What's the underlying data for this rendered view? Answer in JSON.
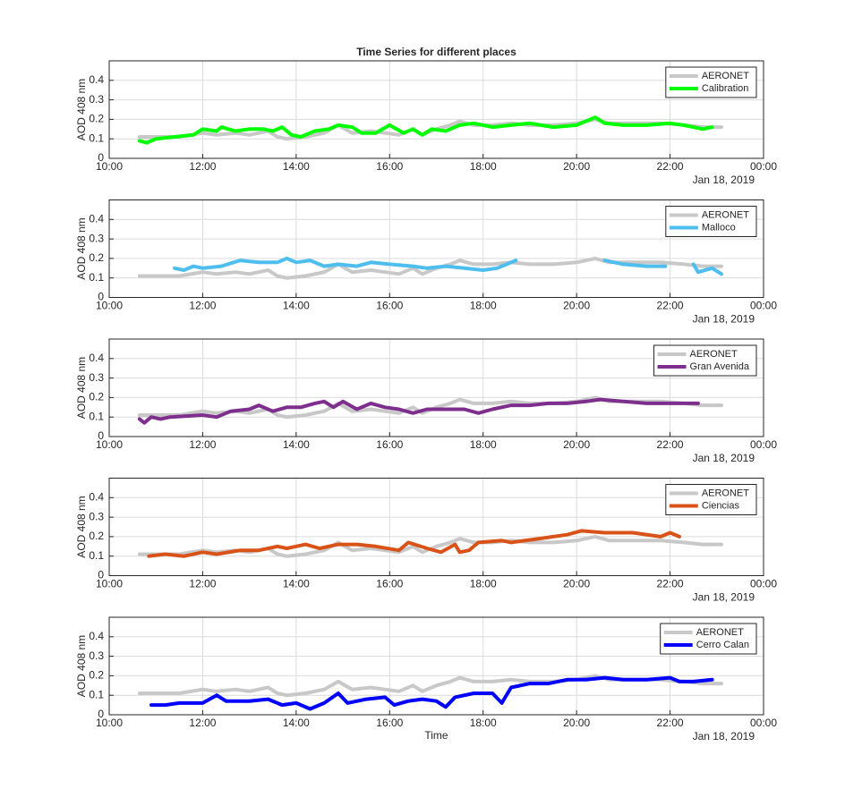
{
  "chart_data": [
    {
      "type": "line",
      "title": "Time Series for different places",
      "ylabel": "AOD 408 nm",
      "date_label": "Jan 18, 2019",
      "xlim": [
        10,
        24
      ],
      "ylim": [
        0,
        0.5
      ],
      "grid": true,
      "legend": "northeast",
      "xticks": [
        {
          "value": 10,
          "label": "10:00"
        },
        {
          "value": 12,
          "label": "12:00"
        },
        {
          "value": 14,
          "label": "14:00"
        },
        {
          "value": 16,
          "label": "16:00"
        },
        {
          "value": 18,
          "label": "18:00"
        },
        {
          "value": 20,
          "label": "20:00"
        },
        {
          "value": 22,
          "label": "22:00"
        },
        {
          "value": 24,
          "label": "00:00"
        }
      ],
      "yticks": [
        0,
        0.1,
        0.2,
        0.3,
        0.4
      ],
      "series": [
        {
          "name": "AERONET",
          "color": "#c8c8c8",
          "x": [
            10.65,
            11.0,
            11.5,
            12.0,
            12.3,
            12.7,
            13.0,
            13.4,
            13.6,
            13.8,
            14.2,
            14.6,
            14.9,
            15.2,
            15.6,
            15.9,
            16.2,
            16.5,
            16.7,
            17.0,
            17.3,
            17.5,
            17.8,
            18.2,
            18.6,
            19.0,
            19.5,
            20.0,
            20.4,
            20.7,
            21.2,
            21.8,
            22.3,
            22.7,
            23.1
          ],
          "values": [
            0.11,
            0.11,
            0.11,
            0.13,
            0.12,
            0.13,
            0.12,
            0.14,
            0.11,
            0.1,
            0.11,
            0.13,
            0.17,
            0.13,
            0.14,
            0.13,
            0.12,
            0.15,
            0.12,
            0.15,
            0.17,
            0.19,
            0.17,
            0.17,
            0.18,
            0.17,
            0.17,
            0.18,
            0.2,
            0.18,
            0.18,
            0.18,
            0.17,
            0.16,
            0.16
          ]
        },
        {
          "name": "Calibration",
          "color": "#00ff00",
          "x": [
            10.65,
            10.8,
            11.0,
            11.4,
            11.8,
            12.0,
            12.3,
            12.4,
            12.7,
            13.0,
            13.3,
            13.5,
            13.7,
            13.9,
            14.1,
            14.4,
            14.7,
            14.9,
            15.2,
            15.4,
            15.7,
            16.0,
            16.3,
            16.5,
            16.7,
            16.9,
            17.2,
            17.5,
            17.8,
            18.2,
            18.6,
            19.0,
            19.5,
            20.0,
            20.4,
            20.6,
            21.0,
            21.5,
            22.0,
            22.3,
            22.7,
            22.9
          ],
          "values": [
            0.09,
            0.08,
            0.1,
            0.11,
            0.12,
            0.15,
            0.14,
            0.16,
            0.14,
            0.15,
            0.15,
            0.14,
            0.16,
            0.12,
            0.11,
            0.14,
            0.15,
            0.17,
            0.16,
            0.13,
            0.13,
            0.17,
            0.13,
            0.15,
            0.12,
            0.15,
            0.14,
            0.17,
            0.18,
            0.16,
            0.17,
            0.18,
            0.16,
            0.17,
            0.21,
            0.18,
            0.17,
            0.17,
            0.18,
            0.17,
            0.15,
            0.16
          ]
        }
      ]
    },
    {
      "type": "line",
      "ylabel": "AOD 408 nm",
      "date_label": "Jan 18, 2019",
      "xlim": [
        10,
        24
      ],
      "ylim": [
        0,
        0.5
      ],
      "grid": true,
      "legend": "northeast",
      "xticks": [
        {
          "value": 10,
          "label": "10:00"
        },
        {
          "value": 12,
          "label": "12:00"
        },
        {
          "value": 14,
          "label": "14:00"
        },
        {
          "value": 16,
          "label": "16:00"
        },
        {
          "value": 18,
          "label": "18:00"
        },
        {
          "value": 20,
          "label": "20:00"
        },
        {
          "value": 22,
          "label": "22:00"
        },
        {
          "value": 24,
          "label": "00:00"
        }
      ],
      "yticks": [
        0,
        0.1,
        0.2,
        0.3,
        0.4
      ],
      "series": [
        {
          "name": "AERONET",
          "color": "#c8c8c8",
          "x": [
            10.65,
            11.0,
            11.5,
            12.0,
            12.3,
            12.7,
            13.0,
            13.4,
            13.6,
            13.8,
            14.2,
            14.6,
            14.9,
            15.2,
            15.6,
            15.9,
            16.2,
            16.5,
            16.7,
            17.0,
            17.3,
            17.5,
            17.8,
            18.2,
            18.6,
            19.0,
            19.5,
            20.0,
            20.4,
            20.7,
            21.2,
            21.8,
            22.3,
            22.7,
            23.1
          ],
          "values": [
            0.11,
            0.11,
            0.11,
            0.13,
            0.12,
            0.13,
            0.12,
            0.14,
            0.11,
            0.1,
            0.11,
            0.13,
            0.17,
            0.13,
            0.14,
            0.13,
            0.12,
            0.15,
            0.12,
            0.15,
            0.17,
            0.19,
            0.17,
            0.17,
            0.18,
            0.17,
            0.17,
            0.18,
            0.2,
            0.18,
            0.18,
            0.18,
            0.17,
            0.16,
            0.16
          ]
        },
        {
          "name": "Malloco",
          "color": "#4dbeee",
          "x": [
            11.4,
            11.6,
            11.8,
            12.0,
            12.4,
            12.8,
            13.2,
            13.6,
            13.8,
            14.0,
            14.3,
            14.6,
            14.9,
            15.3,
            15.6,
            16.0,
            16.5,
            16.8,
            17.2,
            17.6,
            18.0,
            18.3,
            18.7,
            19.6,
            20.6,
            21.0,
            21.5,
            21.9,
            22.2,
            22.5,
            22.6,
            22.9,
            23.1
          ],
          "values": [
            0.15,
            0.14,
            0.16,
            0.15,
            0.16,
            0.19,
            0.18,
            0.18,
            0.2,
            0.18,
            0.19,
            0.16,
            0.17,
            0.16,
            0.18,
            0.17,
            0.16,
            0.15,
            0.16,
            0.15,
            0.14,
            0.15,
            0.19,
            null,
            0.19,
            0.17,
            0.16,
            0.16,
            null,
            0.17,
            0.13,
            0.15,
            0.12
          ]
        }
      ]
    },
    {
      "type": "line",
      "ylabel": "AOD 408 nm",
      "date_label": "Jan 18, 2019",
      "xlim": [
        10,
        24
      ],
      "ylim": [
        0,
        0.5
      ],
      "grid": true,
      "legend": "northeast",
      "xticks": [
        {
          "value": 10,
          "label": "10:00"
        },
        {
          "value": 12,
          "label": "12:00"
        },
        {
          "value": 14,
          "label": "14:00"
        },
        {
          "value": 16,
          "label": "16:00"
        },
        {
          "value": 18,
          "label": "18:00"
        },
        {
          "value": 20,
          "label": "20:00"
        },
        {
          "value": 22,
          "label": "22:00"
        },
        {
          "value": 24,
          "label": "00:00"
        }
      ],
      "yticks": [
        0,
        0.1,
        0.2,
        0.3,
        0.4
      ],
      "series": [
        {
          "name": "AERONET",
          "color": "#c8c8c8",
          "x": [
            10.65,
            11.0,
            11.5,
            12.0,
            12.3,
            12.7,
            13.0,
            13.4,
            13.6,
            13.8,
            14.2,
            14.6,
            14.9,
            15.2,
            15.6,
            15.9,
            16.2,
            16.5,
            16.7,
            17.0,
            17.3,
            17.5,
            17.8,
            18.2,
            18.6,
            19.0,
            19.5,
            20.0,
            20.4,
            20.7,
            21.2,
            21.8,
            22.3,
            22.7,
            23.1
          ],
          "values": [
            0.11,
            0.11,
            0.11,
            0.13,
            0.12,
            0.13,
            0.12,
            0.14,
            0.11,
            0.1,
            0.11,
            0.13,
            0.17,
            0.13,
            0.14,
            0.13,
            0.12,
            0.15,
            0.12,
            0.15,
            0.17,
            0.19,
            0.17,
            0.17,
            0.18,
            0.17,
            0.17,
            0.18,
            0.2,
            0.18,
            0.18,
            0.18,
            0.17,
            0.16,
            0.16
          ]
        },
        {
          "name": "Gran Avenida",
          "color": "#7e2f8e",
          "x": [
            10.65,
            10.75,
            10.9,
            11.1,
            11.3,
            12.0,
            12.3,
            12.6,
            13.0,
            13.2,
            13.5,
            13.8,
            14.1,
            14.4,
            14.6,
            14.8,
            15.0,
            15.3,
            15.6,
            15.9,
            16.2,
            16.5,
            16.8,
            17.2,
            17.6,
            17.9,
            18.2,
            18.6,
            19.0,
            19.4,
            19.8,
            20.2,
            20.5,
            21.0,
            21.5,
            22.0,
            22.6
          ],
          "values": [
            0.09,
            0.07,
            0.1,
            0.09,
            0.1,
            0.11,
            0.1,
            0.13,
            0.14,
            0.16,
            0.13,
            0.15,
            0.15,
            0.17,
            0.18,
            0.15,
            0.18,
            0.14,
            0.17,
            0.15,
            0.14,
            0.12,
            0.14,
            0.14,
            0.14,
            0.12,
            0.14,
            0.16,
            0.16,
            0.17,
            0.17,
            0.18,
            0.19,
            0.18,
            0.17,
            0.17,
            0.17
          ]
        }
      ]
    },
    {
      "type": "line",
      "ylabel": "AOD 408 nm",
      "date_label": "Jan 18, 2019",
      "xlim": [
        10,
        24
      ],
      "ylim": [
        0,
        0.5
      ],
      "grid": true,
      "legend": "northeast",
      "xticks": [
        {
          "value": 10,
          "label": "10:00"
        },
        {
          "value": 12,
          "label": "12:00"
        },
        {
          "value": 14,
          "label": "14:00"
        },
        {
          "value": 16,
          "label": "16:00"
        },
        {
          "value": 18,
          "label": "18:00"
        },
        {
          "value": 20,
          "label": "20:00"
        },
        {
          "value": 22,
          "label": "22:00"
        },
        {
          "value": 24,
          "label": "00:00"
        }
      ],
      "yticks": [
        0,
        0.1,
        0.2,
        0.3,
        0.4
      ],
      "series": [
        {
          "name": "AERONET",
          "color": "#c8c8c8",
          "x": [
            10.65,
            11.0,
            11.5,
            12.0,
            12.3,
            12.7,
            13.0,
            13.4,
            13.6,
            13.8,
            14.2,
            14.6,
            14.9,
            15.2,
            15.6,
            15.9,
            16.2,
            16.5,
            16.7,
            17.0,
            17.3,
            17.5,
            17.8,
            18.2,
            18.6,
            19.0,
            19.5,
            20.0,
            20.4,
            20.7,
            21.2,
            21.8,
            22.3,
            22.7,
            23.1
          ],
          "values": [
            0.11,
            0.11,
            0.11,
            0.13,
            0.12,
            0.13,
            0.12,
            0.14,
            0.11,
            0.1,
            0.11,
            0.13,
            0.17,
            0.13,
            0.14,
            0.13,
            0.12,
            0.15,
            0.12,
            0.15,
            0.17,
            0.19,
            0.17,
            0.17,
            0.18,
            0.17,
            0.17,
            0.18,
            0.2,
            0.18,
            0.18,
            0.18,
            0.17,
            0.16,
            0.16
          ]
        },
        {
          "name": "Ciencias",
          "color": "#d95319",
          "x": [
            10.85,
            11.2,
            11.6,
            12.0,
            12.3,
            12.8,
            13.2,
            13.6,
            13.8,
            14.0,
            14.2,
            14.5,
            14.9,
            15.3,
            15.7,
            16.2,
            16.4,
            16.8,
            17.1,
            17.4,
            17.5,
            17.7,
            17.9,
            18.4,
            18.6,
            19.2,
            19.8,
            20.1,
            20.6,
            21.2,
            21.8,
            22.0,
            22.2
          ],
          "values": [
            0.1,
            0.11,
            0.1,
            0.12,
            0.11,
            0.13,
            0.13,
            0.15,
            0.14,
            0.15,
            0.16,
            0.14,
            0.16,
            0.16,
            0.15,
            0.13,
            0.17,
            0.14,
            0.12,
            0.16,
            0.12,
            0.13,
            0.17,
            0.18,
            0.17,
            0.19,
            0.21,
            0.23,
            0.22,
            0.22,
            0.2,
            0.22,
            0.2
          ]
        }
      ]
    },
    {
      "type": "line",
      "ylabel": "AOD 408 nm",
      "xlabel": "Time",
      "date_label": "Jan 18, 2019",
      "xlim": [
        10,
        24
      ],
      "ylim": [
        0,
        0.5
      ],
      "grid": true,
      "legend": "northeast",
      "xticks": [
        {
          "value": 10,
          "label": "10:00"
        },
        {
          "value": 12,
          "label": "12:00"
        },
        {
          "value": 14,
          "label": "14:00"
        },
        {
          "value": 16,
          "label": "16:00"
        },
        {
          "value": 18,
          "label": "18:00"
        },
        {
          "value": 20,
          "label": "20:00"
        },
        {
          "value": 22,
          "label": "22:00"
        },
        {
          "value": 24,
          "label": "00:00"
        }
      ],
      "yticks": [
        0,
        0.1,
        0.2,
        0.3,
        0.4
      ],
      "series": [
        {
          "name": "AERONET",
          "color": "#c8c8c8",
          "x": [
            10.65,
            11.0,
            11.5,
            12.0,
            12.3,
            12.7,
            13.0,
            13.4,
            13.6,
            13.8,
            14.2,
            14.6,
            14.9,
            15.2,
            15.6,
            15.9,
            16.2,
            16.5,
            16.7,
            17.0,
            17.3,
            17.5,
            17.8,
            18.2,
            18.6,
            19.0,
            19.5,
            20.0,
            20.4,
            20.7,
            21.2,
            21.8,
            22.3,
            22.7,
            23.1
          ],
          "values": [
            0.11,
            0.11,
            0.11,
            0.13,
            0.12,
            0.13,
            0.12,
            0.14,
            0.11,
            0.1,
            0.11,
            0.13,
            0.17,
            0.13,
            0.14,
            0.13,
            0.12,
            0.15,
            0.12,
            0.15,
            0.17,
            0.19,
            0.17,
            0.17,
            0.18,
            0.17,
            0.17,
            0.18,
            0.2,
            0.18,
            0.18,
            0.18,
            0.17,
            0.16,
            0.16
          ]
        },
        {
          "name": "Cerro Calan",
          "color": "#0000ff",
          "x": [
            10.9,
            11.2,
            11.5,
            12.0,
            12.3,
            12.5,
            13.0,
            13.4,
            13.7,
            14.0,
            14.3,
            14.6,
            14.9,
            15.1,
            15.5,
            15.9,
            16.1,
            16.4,
            16.7,
            17.0,
            17.2,
            17.4,
            17.8,
            18.2,
            18.4,
            18.6,
            19.0,
            19.4,
            19.8,
            20.2,
            20.6,
            21.0,
            21.5,
            22.0,
            22.2,
            22.5,
            22.9
          ],
          "values": [
            0.05,
            0.05,
            0.06,
            0.06,
            0.1,
            0.07,
            0.07,
            0.08,
            0.05,
            0.06,
            0.03,
            0.06,
            0.11,
            0.06,
            0.08,
            0.09,
            0.05,
            0.07,
            0.08,
            0.07,
            0.04,
            0.09,
            0.11,
            0.11,
            0.06,
            0.14,
            0.16,
            0.16,
            0.18,
            0.18,
            0.19,
            0.18,
            0.18,
            0.19,
            0.17,
            0.17,
            0.18
          ]
        }
      ]
    }
  ]
}
